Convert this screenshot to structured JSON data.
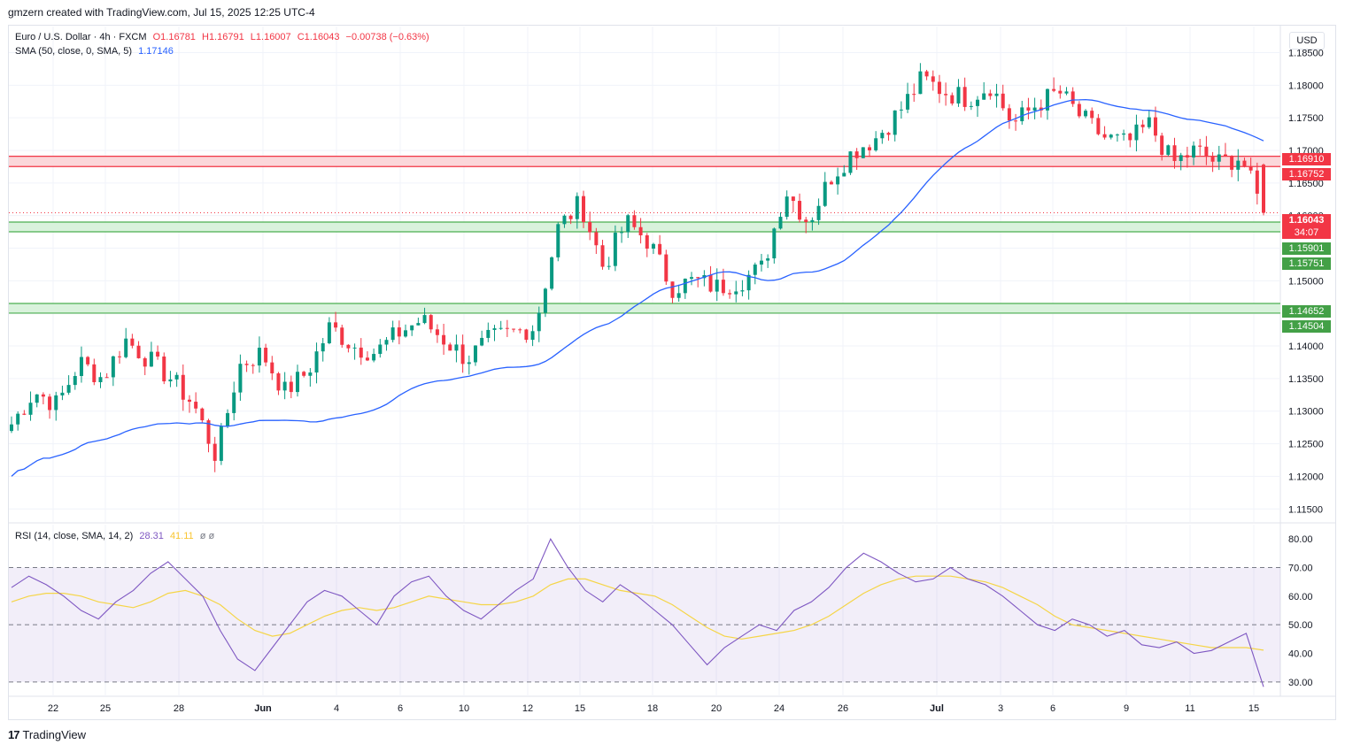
{
  "header": {
    "credit": "gmzern created with TradingView.com, Jul 15, 2025 12:25 UTC-4"
  },
  "legend": {
    "symbol": "Euro / U.S. Dollar · 4h · FXCM",
    "open": "O1.16781",
    "high": "H1.16791",
    "low": "L1.16007",
    "close": "C1.16043",
    "change": "−0.00738 (−0.63%)",
    "sma_label": "SMA (50, close, 0, SMA, 5)",
    "sma_value": "1.17146",
    "rsi_label": "RSI (14, close, SMA, 14, 2)",
    "rsi_value": "28.31",
    "rsi_sma_value": "41.11",
    "rsi_extra": "ø ø"
  },
  "currency_button": "USD",
  "footer": {
    "brand": "TradingView"
  },
  "price_boxes": {
    "res_top": "1.16910",
    "res_bottom": "1.16752",
    "last_price": "1.16043",
    "countdown": "34:07",
    "sup1_top": "1.15901",
    "sup1_bottom": "1.15751",
    "sup2_top": "1.14652",
    "sup2_bottom": "1.14504"
  },
  "colors": {
    "up": "#089981",
    "down": "#f23645",
    "sma": "#2962ff",
    "rsi": "#7e57c2",
    "rsi_ma": "#f5d547",
    "resistance_fill": "#fbd7da",
    "support_fill": "#d9f2dc",
    "resistance_line": "#f23645",
    "support_line": "#4caf50"
  },
  "chart_data": [
    {
      "type": "candlestick",
      "title": "Euro / U.S. Dollar · 4h · FXCM",
      "ylim": [
        1.113,
        1.189
      ],
      "y_ticks": [
        "1.11500",
        "1.12000",
        "1.12500",
        "1.13000",
        "1.13500",
        "1.14000",
        "1.14500",
        "1.15000",
        "1.15500",
        "1.16000",
        "1.16500",
        "1.17000",
        "1.17500",
        "1.18000",
        "1.18500"
      ],
      "x_ticks": [
        "22",
        "25",
        "28",
        "Jun",
        "4",
        "6",
        "10",
        "12",
        "15",
        "18",
        "20",
        "24",
        "26",
        "Jul",
        "3",
        "6",
        "9",
        "11",
        "15"
      ],
      "zones": [
        {
          "kind": "resistance",
          "from": 1.16752,
          "to": 1.1691
        },
        {
          "kind": "support",
          "from": 1.15751,
          "to": 1.15901
        },
        {
          "kind": "support",
          "from": 1.14504,
          "to": 1.14652
        }
      ],
      "last_price": 1.16043,
      "series": [
        {
          "name": "EURUSD 4h",
          "close_path_x_days": [
            0,
            1,
            2,
            3,
            4,
            5,
            6,
            7,
            8,
            9,
            10,
            11,
            12,
            13,
            14,
            15,
            16,
            17,
            18,
            19,
            20,
            21,
            22,
            23,
            24,
            25,
            26,
            27,
            28,
            29,
            30,
            31,
            32,
            33,
            34,
            35,
            36,
            37,
            38,
            39,
            40,
            41,
            42,
            43,
            44,
            45,
            46,
            47,
            48,
            49,
            50,
            51,
            52,
            53,
            54,
            55
          ],
          "close_path": [
            1.128,
            1.133,
            1.131,
            1.1375,
            1.135,
            1.141,
            1.138,
            1.135,
            1.131,
            1.123,
            1.137,
            1.139,
            1.133,
            1.136,
            1.143,
            1.14,
            1.139,
            1.142,
            1.144,
            1.141,
            1.138,
            1.141,
            1.142,
            1.143,
            1.158,
            1.162,
            1.152,
            1.159,
            1.156,
            1.149,
            1.15,
            1.149,
            1.15,
            1.152,
            1.164,
            1.159,
            1.166,
            1.17,
            1.172,
            1.176,
            1.181,
            1.179,
            1.178,
            1.18,
            1.174,
            1.177,
            1.179,
            1.175,
            1.172,
            1.171,
            1.174,
            1.168,
            1.17,
            1.168,
            1.169,
            1.1604
          ]
        },
        {
          "name": "SMA",
          "values_start": 1.12,
          "values_end": 1.17146
        }
      ]
    },
    {
      "type": "line",
      "title": "RSI (14, close, SMA, 14, 2)",
      "ylim": [
        25,
        85
      ],
      "y_ticks": [
        "30.00",
        "40.00",
        "50.00",
        "60.00",
        "70.00",
        "80.00"
      ],
      "bands": [
        30,
        50,
        70
      ],
      "series": [
        {
          "name": "RSI",
          "values": [
            63,
            67,
            64,
            60,
            55,
            52,
            58,
            62,
            68,
            72,
            66,
            60,
            48,
            38,
            34,
            42,
            50,
            58,
            62,
            60,
            55,
            50,
            60,
            65,
            67,
            60,
            55,
            52,
            57,
            62,
            66,
            80,
            70,
            62,
            58,
            64,
            60,
            55,
            50,
            43,
            36,
            42,
            46,
            50,
            48,
            55,
            58,
            63,
            70,
            75,
            72,
            68,
            65,
            66,
            70,
            66,
            64,
            60,
            55,
            50,
            48,
            52,
            50,
            46,
            48,
            43,
            42,
            44,
            40,
            41,
            44,
            47,
            28.31
          ]
        },
        {
          "name": "RSI SMA",
          "values": [
            58,
            60,
            61,
            61,
            60,
            58,
            57,
            56,
            58,
            61,
            62,
            60,
            57,
            52,
            48,
            46,
            47,
            50,
            53,
            55,
            56,
            55,
            56,
            58,
            60,
            59,
            58,
            57,
            57,
            58,
            60,
            64,
            66,
            66,
            64,
            62,
            61,
            60,
            57,
            53,
            49,
            46,
            45,
            46,
            47,
            48,
            50,
            53,
            57,
            61,
            64,
            66,
            67,
            67,
            67,
            66,
            65,
            63,
            60,
            57,
            53,
            50,
            49,
            48,
            47,
            46,
            45,
            44,
            43,
            42,
            42,
            42,
            41.11
          ]
        }
      ]
    }
  ]
}
